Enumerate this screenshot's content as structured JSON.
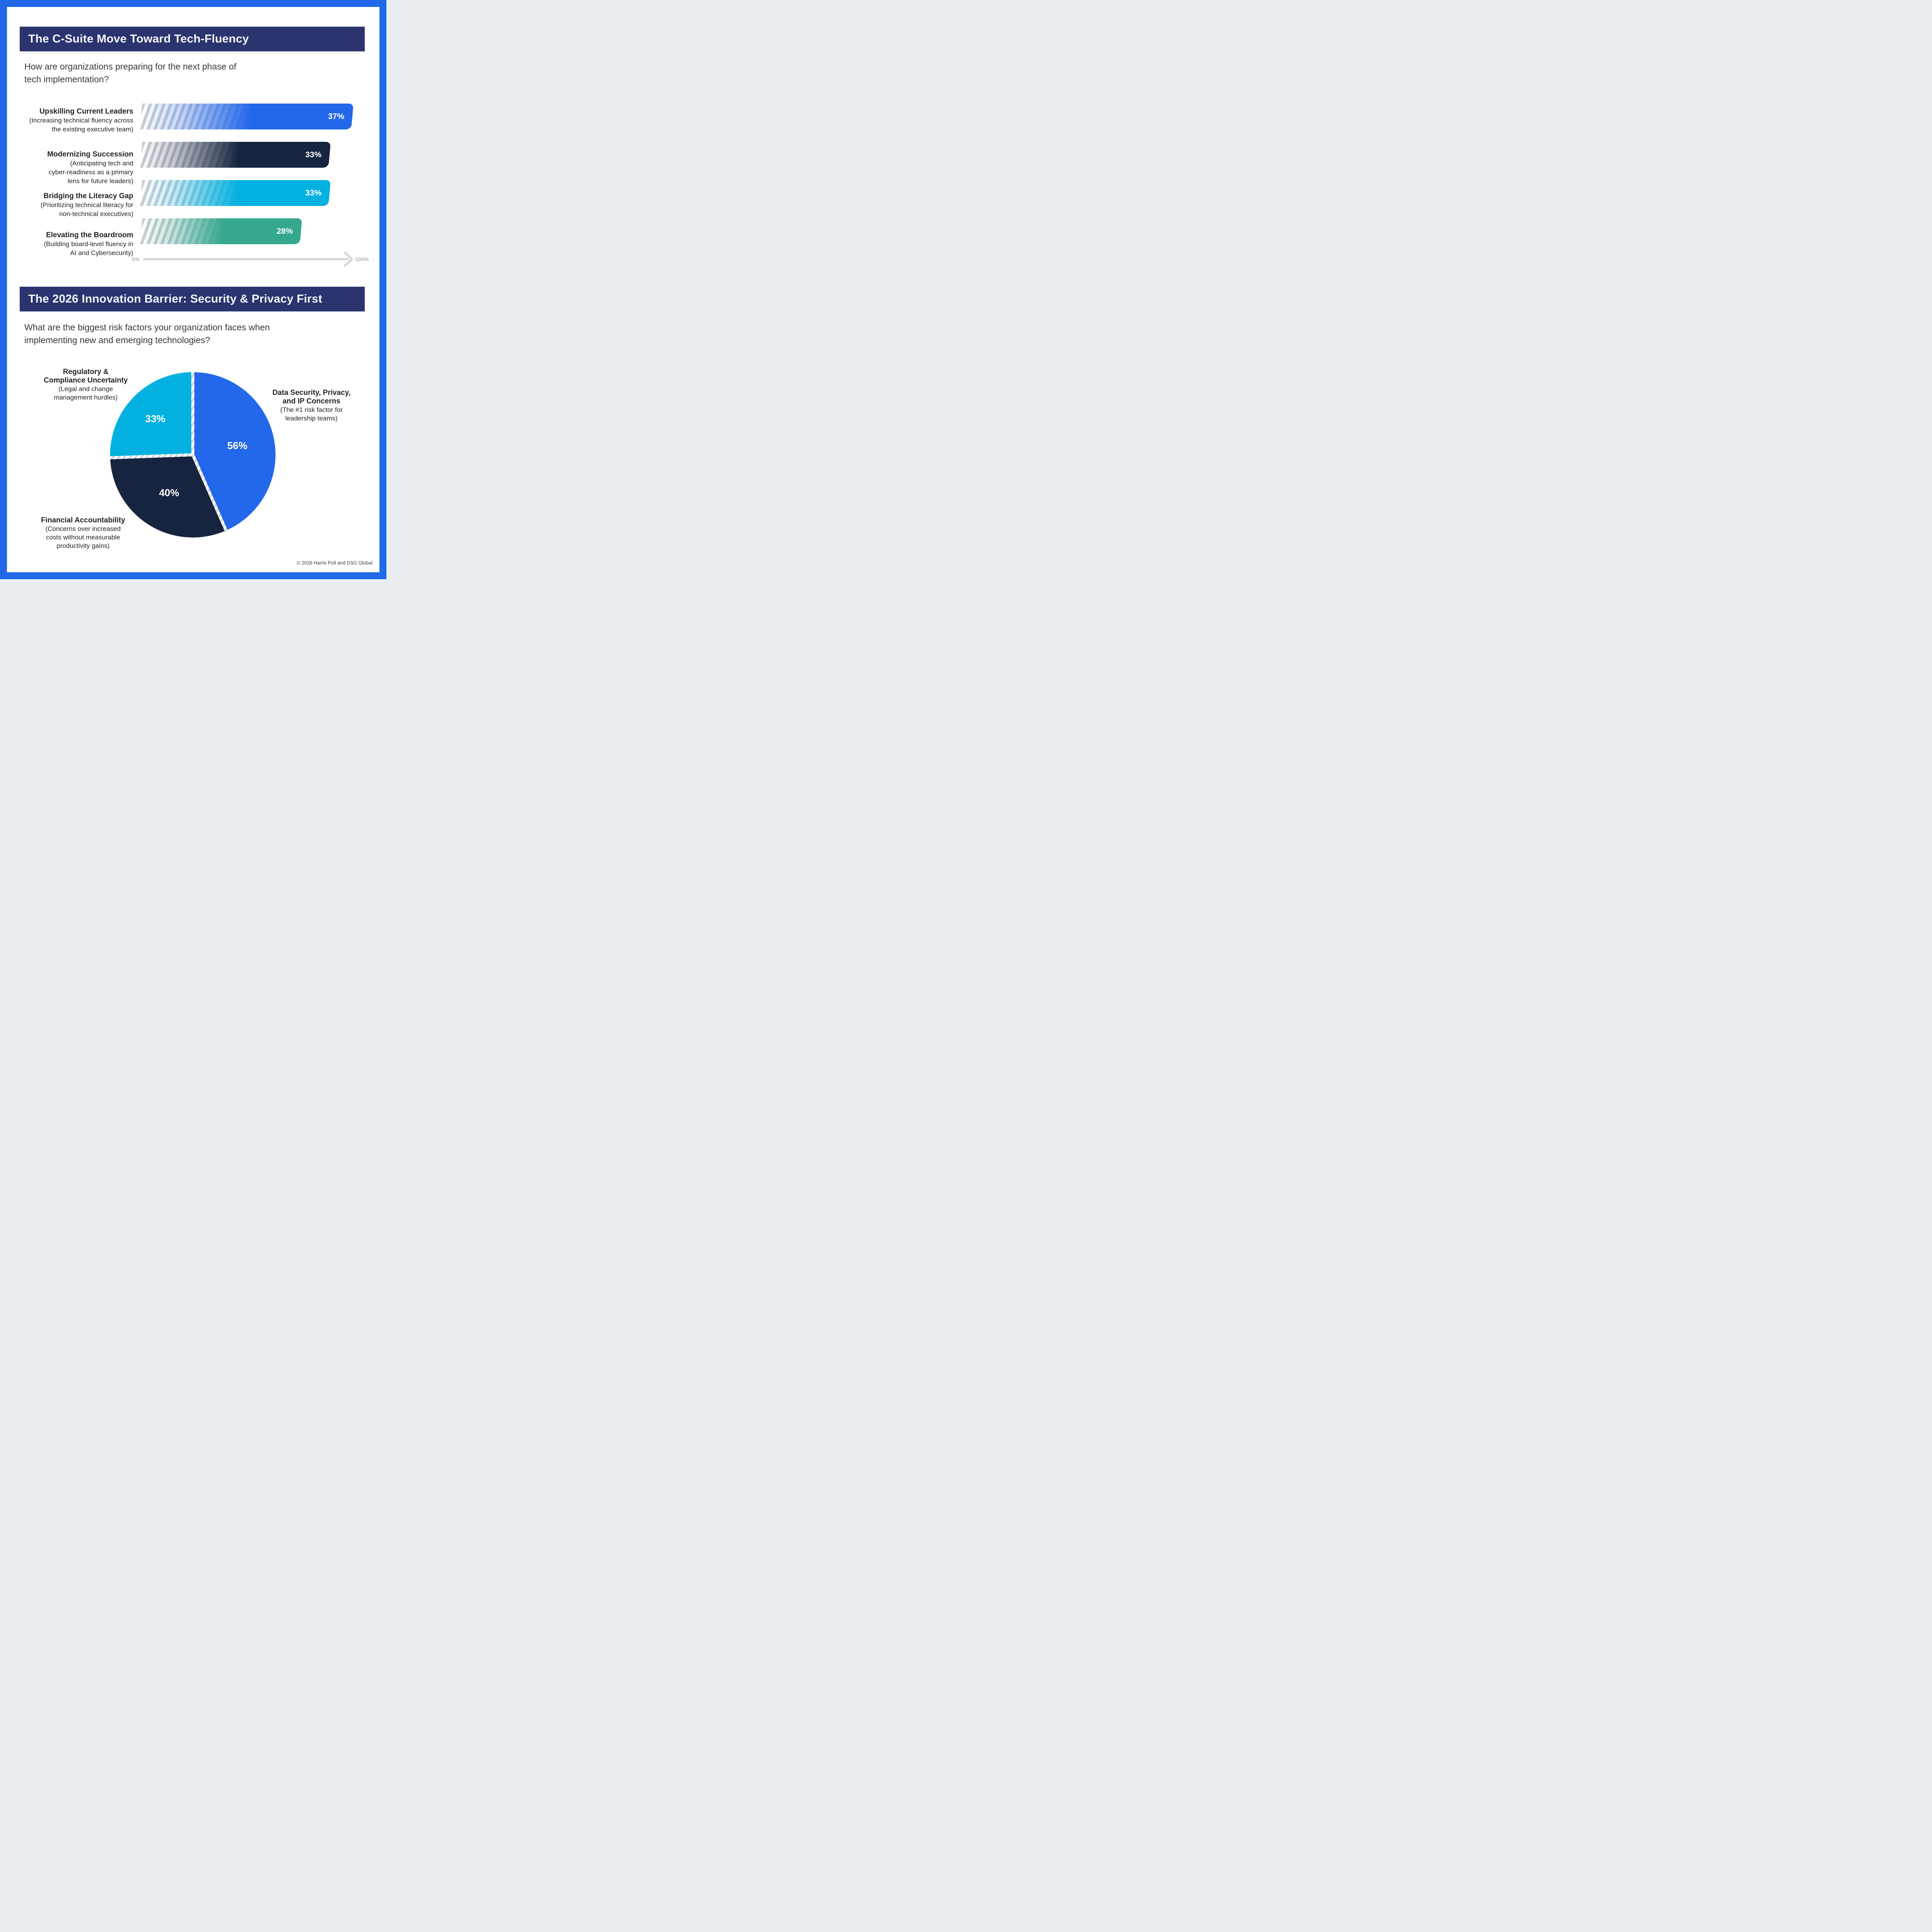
{
  "colors": {
    "frame_blue": "#2269EA",
    "banner_navy": "#2B346F",
    "banner_text": "#F4F5F8",
    "stripe_gray": "#CBCDD5",
    "axis_gray": "#D2D4D9",
    "axis_label_gray": "#B3B6BC",
    "hatch_gray": "#D3D5D9",
    "label_text": "#1F2327",
    "question_text": "#33383E",
    "footer_text": "#3A4046"
  },
  "section1": {
    "title": "The C-Suite Move Toward Tech-Fluency",
    "question_lines": [
      "How are organizations preparing for the next phase of",
      "tech implementation?"
    ],
    "chart": {
      "bars": [
        {
          "label": "Upskilling Current Leaders",
          "sublabel_lines": [
            "(Increasing technical fluency across",
            "the existing executive team)"
          ],
          "value": 37,
          "value_label": "37%",
          "color": "#2368EA"
        },
        {
          "label": "Modernizing Succession",
          "sublabel_lines": [
            "(Anticipating tech and",
            "cyber-readiness as a primary",
            "lens for future leaders)"
          ],
          "value": 33,
          "value_label": "33%",
          "color": "#16243F"
        },
        {
          "label": "Bridging the Literacy Gap",
          "sublabel_lines": [
            "(Prioritizing technical literacy for",
            "non-technical executives)"
          ],
          "value": 33,
          "value_label": "33%",
          "color": "#02B1E0"
        },
        {
          "label": "Elevating the Boardroom",
          "sublabel_lines": [
            "(Building board-level fluency in",
            "AI and Cybersecurity)"
          ],
          "value": 28,
          "value_label": "28%",
          "color": "#34A78C"
        }
      ],
      "axis": {
        "min_label": "0%",
        "max_label": "100%"
      }
    }
  },
  "section2": {
    "title": "The 2026 Innovation Barrier: Security & Privacy First",
    "question_lines": [
      "What are the biggest risk factors your organization faces when",
      "implementing new and emerging technologies?"
    ],
    "pie": {
      "slices": [
        {
          "label_lines": [
            "Data Security, Privacy,",
            "and IP Concerns"
          ],
          "sublabel_lines": [
            "(The #1 risk factor for",
            "leadership teams)"
          ],
          "value": 56,
          "value_label": "56%",
          "color": "#2368EA"
        },
        {
          "label_lines": [
            "Financial Accountability"
          ],
          "sublabel_lines": [
            "(Concerns over increased",
            "costs without measurable",
            "productivity gains)"
          ],
          "value": 40,
          "value_label": "40%",
          "color": "#16243F"
        },
        {
          "label_lines": [
            "Regulatory &",
            "Compliance Uncertainty"
          ],
          "sublabel_lines": [
            "(Legal and change",
            "management hurdles)"
          ],
          "value": 33,
          "value_label": "33%",
          "color": "#02B1E0"
        }
      ]
    }
  },
  "footer": {
    "copyright": "© 2026 Harris Poll and DSG Global"
  },
  "chart_data": [
    {
      "type": "bar",
      "orientation": "horizontal",
      "title": "The C-Suite Move Toward Tech-Fluency",
      "subtitle": "How are organizations preparing for the next phase of tech implementation?",
      "categories": [
        "Upskilling Current Leaders (Increasing technical fluency across the existing executive team)",
        "Modernizing Succession (Anticipating tech and cyber-readiness as a primary lens for future leaders)",
        "Bridging the Literacy Gap (Prioritizing technical literacy for non-technical executives)",
        "Elevating the Boardroom (Building board-level fluency in AI and Cybersecurity)"
      ],
      "values": [
        37,
        33,
        33,
        28
      ],
      "data_labels": [
        "37%",
        "33%",
        "33%",
        "28%"
      ],
      "unit": "%",
      "xlabel": "",
      "ylabel": "",
      "xlim": [
        0,
        100
      ],
      "axis_tick_labels": [
        "0%",
        "100%"
      ],
      "grid": false,
      "legend": false,
      "bar_colors": [
        "#2368EA",
        "#16243F",
        "#02B1E0",
        "#34A78C"
      ]
    },
    {
      "type": "pie",
      "title": "The 2026 Innovation Barrier: Security & Privacy First",
      "subtitle": "What are the biggest risk factors your organization faces when implementing new and emerging technologies?",
      "labels": [
        "Data Security, Privacy, and IP Concerns (The #1 risk factor for leadership teams)",
        "Financial Accountability (Concerns over increased costs without measurable productivity gains)",
        "Regulatory & Compliance Uncertainty (Legal and change management hurdles)"
      ],
      "values": [
        56,
        40,
        33
      ],
      "data_labels": [
        "56%",
        "40%",
        "33%"
      ],
      "colors": [
        "#2368EA",
        "#16243F",
        "#02B1E0"
      ],
      "start_angle": "12-oclock",
      "direction": "clockwise",
      "note": "Values sum to 129% (multi-select survey); slice angles drawn proportional to values"
    }
  ]
}
